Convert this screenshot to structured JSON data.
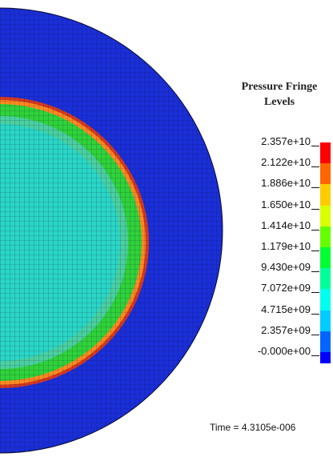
{
  "plot": {
    "grid": "on",
    "shape": "half-disc",
    "description_colors": {
      "outer": "#1a2fd8",
      "inner_fill": "#2ad6c6",
      "inner_fill_alt": "#4ad0a0",
      "annulus_green": "#2fd23a",
      "ring_orange": "#ff8a20",
      "ring_red": "#d63a1e",
      "mesh_line": "#0a0a30"
    }
  },
  "legend": {
    "title_line1": "Pressure Fringe",
    "title_line2": "Levels",
    "levels": [
      {
        "label": "2.357e+10",
        "color": "#ff0000"
      },
      {
        "label": "2.122e+10",
        "color": "#ff6600"
      },
      {
        "label": "1.886e+10",
        "color": "#ffcc00"
      },
      {
        "label": "1.650e+10",
        "color": "#d9ff00"
      },
      {
        "label": "1.414e+10",
        "color": "#66ff00"
      },
      {
        "label": "1.179e+10",
        "color": "#00ff33"
      },
      {
        "label": "9.430e+09",
        "color": "#00ff99"
      },
      {
        "label": "7.072e+09",
        "color": "#00ffee"
      },
      {
        "label": "4.715e+09",
        "color": "#00ccff"
      },
      {
        "label": "2.357e+09",
        "color": "#0066ff"
      },
      {
        "label": "-0.000e+00",
        "color": "#0000ff"
      }
    ]
  },
  "time_label": "Time = 4.3105e-006"
}
